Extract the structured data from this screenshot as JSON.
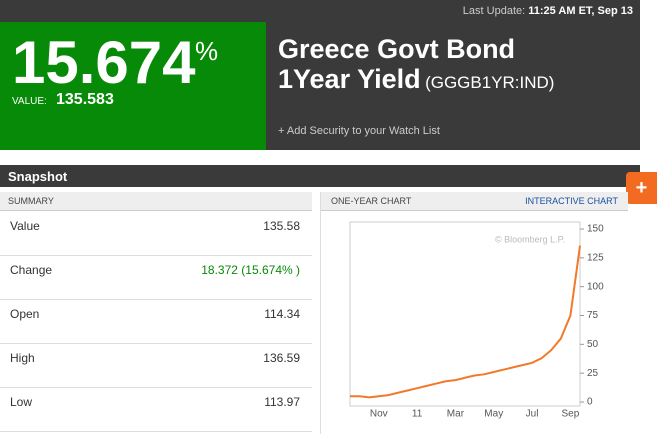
{
  "header": {
    "last_update_label": "Last Update:",
    "last_update_time": "11:25 AM ET, Sep 13",
    "yield": "15.674",
    "yield_unit": "%",
    "value_label": "VALUE:",
    "value": "135.583",
    "title_line1": "Greece Govt Bond",
    "title_line2": "1Year Yield",
    "ticker": "(GGGB1YR:IND)",
    "watch_link": "+ Add Security to your Watch List"
  },
  "snapshot": {
    "title": "Snapshot",
    "summary_title": "SUMMARY",
    "rows": [
      [
        "Value",
        "135.58"
      ],
      [
        "Change",
        "18.372 (15.674% )"
      ],
      [
        "Open",
        "114.34"
      ],
      [
        "High",
        "136.59"
      ],
      [
        "Low",
        "113.97"
      ]
    ]
  },
  "chart_data": {
    "type": "line",
    "title": "ONE-YEAR CHART",
    "link": "INTERACTIVE CHART",
    "watermark": "© Bloomberg L.P.",
    "categories": [
      null,
      null,
      null,
      "Nov",
      null,
      null,
      null,
      "11",
      null,
      null,
      null,
      "Mar",
      null,
      null,
      null,
      "May",
      null,
      null,
      null,
      "Jul",
      null,
      null,
      null,
      "Sep",
      null
    ],
    "series": [
      {
        "name": "Yield",
        "color": "#f07a2a",
        "values": [
          5,
          5,
          4,
          5,
          6,
          8,
          10,
          12,
          14,
          16,
          18,
          19,
          21,
          23,
          24,
          26,
          28,
          30,
          32,
          34,
          38,
          45,
          55,
          75,
          135.58
        ]
      }
    ],
    "ylim": [
      0,
      150
    ],
    "yticks": [
      0,
      25,
      50,
      75,
      100,
      125,
      150
    ],
    "grid": false
  }
}
